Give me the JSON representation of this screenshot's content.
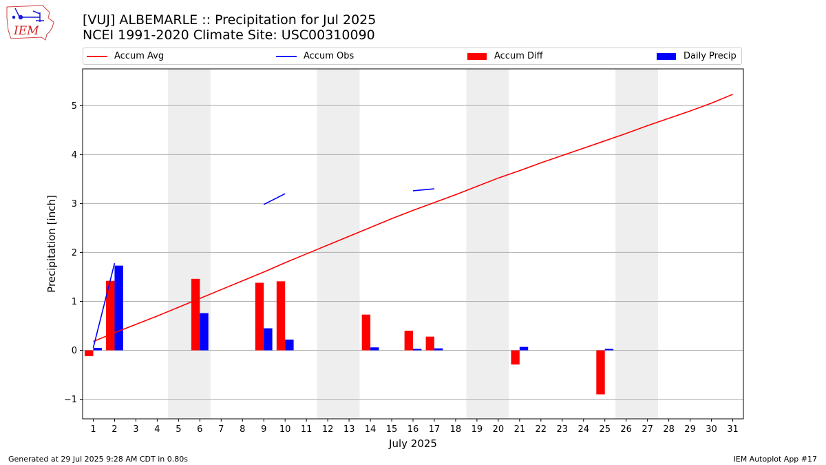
{
  "header": {
    "title_line1": "[VUJ] ALBEMARLE :: Precipitation for Jul 2025",
    "title_line2": "NCEI 1991-2020 Climate Site: USC00310090"
  },
  "logo": {
    "text": "IEM",
    "icon": "iem-iowa-logo"
  },
  "footer": {
    "left": "Generated at 29 Jul 2025 9:28 AM CDT in 0.80s",
    "right": "IEM Autoplot App #17"
  },
  "chart_data": {
    "type": "bar",
    "xlabel": "July 2025",
    "ylabel": "Precipitation [inch]",
    "xlim": [
      0.5,
      31.5
    ],
    "ylim": [
      -1.4,
      5.75
    ],
    "yticks": [
      -1,
      0,
      1,
      2,
      3,
      4,
      5
    ],
    "ytick_labels": [
      "−1",
      "0",
      "1",
      "2",
      "3",
      "4",
      "5"
    ],
    "xticks": [
      1,
      2,
      3,
      4,
      5,
      6,
      7,
      8,
      9,
      10,
      11,
      12,
      13,
      14,
      15,
      16,
      17,
      18,
      19,
      20,
      21,
      22,
      23,
      24,
      25,
      26,
      27,
      28,
      29,
      30,
      31
    ],
    "grid": "horizontal",
    "weekend_shading": [
      [
        5,
        6
      ],
      [
        12,
        13
      ],
      [
        19,
        20
      ],
      [
        26,
        27
      ]
    ],
    "legend": [
      "Accum Avg",
      "Accum Obs",
      "Accum Diff",
      "Daily Precip"
    ],
    "legend_position": "top",
    "colors": {
      "avg": "#ff0000",
      "obs": "#0000ff",
      "diff": "#ff0000",
      "daily": "#0000ff",
      "shade": "#eeeeee"
    },
    "series": [
      {
        "name": "Accum Avg",
        "type": "line",
        "days": [
          1,
          2,
          3,
          4,
          5,
          6,
          7,
          8,
          9,
          10,
          11,
          12,
          13,
          14,
          15,
          16,
          17,
          18,
          19,
          20,
          21,
          22,
          23,
          24,
          25,
          26,
          27,
          28,
          29,
          30,
          31
        ],
        "values": [
          0.18,
          0.36,
          0.53,
          0.7,
          0.88,
          1.06,
          1.24,
          1.42,
          1.6,
          1.79,
          1.97,
          2.15,
          2.33,
          2.51,
          2.69,
          2.86,
          3.02,
          3.18,
          3.35,
          3.52,
          3.67,
          3.83,
          3.98,
          4.13,
          4.28,
          4.43,
          4.59,
          4.74,
          4.89,
          5.05,
          5.23
        ]
      },
      {
        "name": "Accum Obs",
        "type": "line",
        "segments": [
          {
            "days": [
              1,
              2
            ],
            "values": [
              0.05,
              1.78
            ]
          },
          {
            "days": [
              9,
              10
            ],
            "values": [
              2.98,
              3.2
            ]
          },
          {
            "days": [
              16,
              17
            ],
            "values": [
              3.26,
              3.3
            ]
          }
        ]
      },
      {
        "name": "Accum Diff",
        "type": "bar",
        "days": [
          1,
          2,
          6,
          9,
          10,
          14,
          16,
          17,
          21,
          25
        ],
        "values": [
          -0.12,
          1.42,
          1.46,
          1.38,
          1.41,
          0.73,
          0.4,
          0.28,
          -0.29,
          -0.9
        ]
      },
      {
        "name": "Daily Precip",
        "type": "bar",
        "days": [
          1,
          2,
          6,
          9,
          10,
          14,
          16,
          17,
          21,
          25
        ],
        "values": [
          0.05,
          1.73,
          0.76,
          0.45,
          0.22,
          0.06,
          0.03,
          0.04,
          0.07,
          0.03
        ]
      }
    ]
  }
}
